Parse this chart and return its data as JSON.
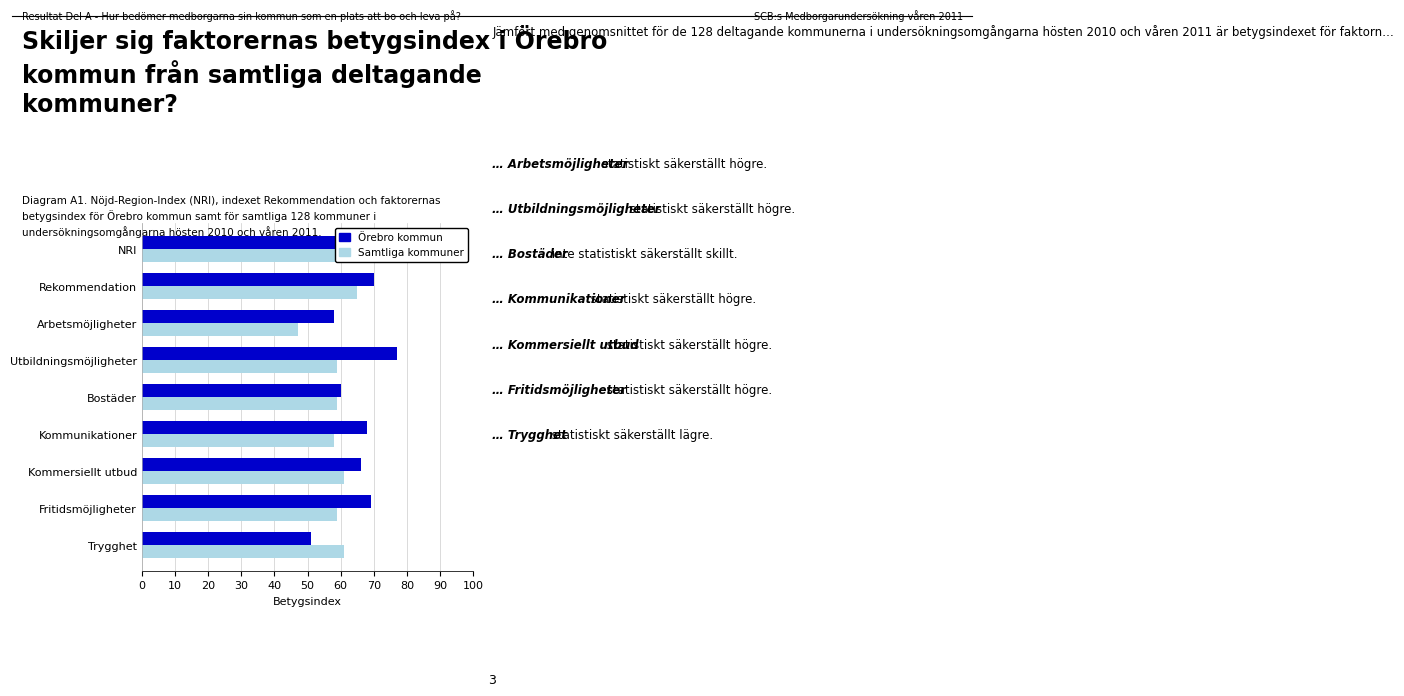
{
  "categories": [
    "Trygghet",
    "Fritidsmöjligheter",
    "Kommersiellt utbud",
    "Kommunikationer",
    "Bostäder",
    "Utbildningsmöjligheter",
    "Arbetsmöjligheter",
    "Rekommendation",
    "NRI"
  ],
  "orebro_values": [
    51,
    69,
    66,
    68,
    60,
    77,
    58,
    70,
    64
  ],
  "samtliga_values": [
    61,
    59,
    61,
    58,
    59,
    59,
    47,
    65,
    61
  ],
  "orebro_color": "#0000cc",
  "samtliga_color": "#add8e6",
  "legend_orebro": "Örebro kommun",
  "legend_samtliga": "Samtliga kommuner",
  "xlabel": "Betygsindex",
  "xlim": [
    0,
    100
  ],
  "xticks": [
    0,
    10,
    20,
    30,
    40,
    50,
    60,
    70,
    80,
    90,
    100
  ],
  "bar_height": 0.35,
  "title_top": "Resultat Del A - Hur bedömer medborgarna sin kommun som en plats att bo och leva på?",
  "title_right": "SCB:s Medborgarundersökning våren 2011",
  "heading": "Skiljer sig faktorernas betygsindex i Örebro\nkommun från samtliga deltagande\nkommuner?",
  "diagram_caption": "Diagram A1. Nöjd-Region-Index (NRI), indexet Rekommendation och faktorernas\nbetygsindex för Örebro kommun samt för samtliga 128 kommuner i\nundersökningsomgångarna hösten 2010 och våren 2011.",
  "right_column_intro": "Jämfört med genomsnittet för de 128 deltagande kommunerna i undersökningsomgångarna hösten 2010 och våren 2011 är betygsindexet för faktorn…",
  "right_items": [
    {
      "bold": "… Arbetsmöjligheter",
      "normal": " statistiskt säkerställt högre."
    },
    {
      "bold": "… Utbildningsmöjligheter",
      "normal": " statistiskt säkerställt högre."
    },
    {
      "bold": "… Bostäder",
      "normal": " inte statistiskt säkerställt skillt."
    },
    {
      "bold": "… Kommunikationer",
      "normal": " statistiskt säkerställt högre."
    },
    {
      "bold": "… Kommersiellt utbud",
      "normal": " statistiskt säkerställt högre."
    },
    {
      "bold": "… Fritidsmöjligheter",
      "normal": " statistiskt säkerställt högre."
    },
    {
      "bold": "… Trygghet",
      "normal": " statistiskt säkerställt lägre."
    }
  ],
  "page_number": "3",
  "figure_bg": "#ffffff",
  "chart_bg": "#ffffff",
  "grid_color": "#cccccc"
}
